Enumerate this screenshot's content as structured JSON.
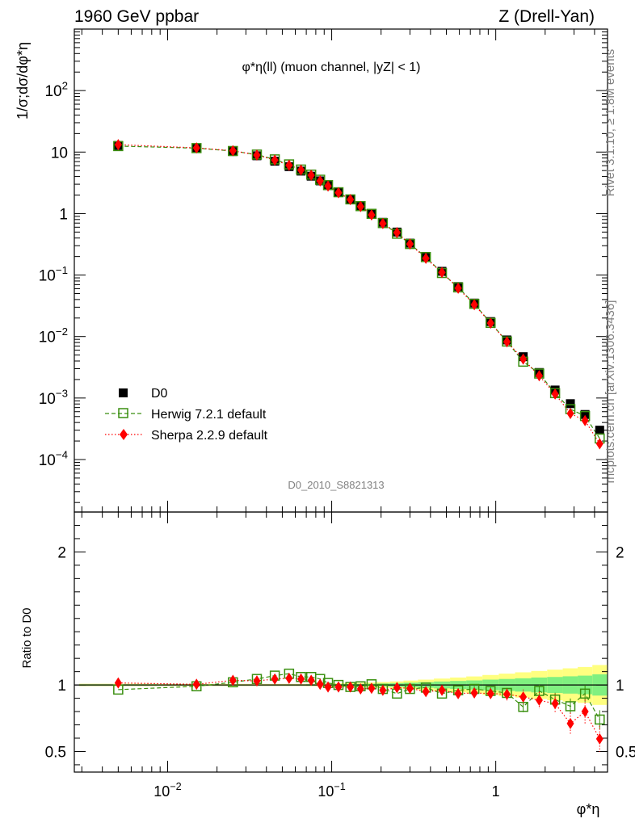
{
  "header": {
    "left": "1960 GeV ppbar",
    "right": "Z (Drell-Yan)"
  },
  "plot_title": "φ*η(ll) (muon channel, |yZ| < 1)",
  "side_labels": {
    "rivet": "Rivet 3.1.10, ≥ 1.8M events",
    "source": "mcplots.cern.ch [arXiv:1306.3436]"
  },
  "analysis_tag": "D0_2010_S8821313",
  "axes": {
    "main_ylabel": "1/σ;dσ/dφ*η",
    "ratio_ylabel": "Ratio to D0",
    "xlabel": "φ*η"
  },
  "legend": {
    "position": "lower-left",
    "entries": [
      "D0",
      "Herwig 7.2.1 default",
      "Sherpa 2.2.9 default"
    ]
  },
  "colors": {
    "data": "#000000",
    "herwig": "#3a8f10",
    "sherpa": "#ff0000",
    "band_inner": "#80f080",
    "band_outer": "#ffff80"
  },
  "chart_data": {
    "type": "scatter",
    "xscale": "log",
    "yscale": "log",
    "xlim": [
      0.0027,
      4.8
    ],
    "ylim": [
      1.4e-05,
      1000
    ],
    "ratio_ylim": [
      0.345,
      2.3
    ],
    "x_ticks": [
      "10^-2",
      "10^-1",
      "1"
    ],
    "main_y_ticks": [
      "10^-4",
      "10^-3",
      "10^-2",
      "10^-1",
      "1",
      "10",
      "10^2"
    ],
    "ratio_y_ticks": [
      "0.5",
      "1",
      "2"
    ],
    "x": [
      0.005,
      0.015,
      0.025,
      0.035,
      0.045,
      0.055,
      0.065,
      0.075,
      0.085,
      0.095,
      0.11,
      0.13,
      0.15,
      0.175,
      0.205,
      0.25,
      0.3,
      0.375,
      0.47,
      0.59,
      0.74,
      0.93,
      1.17,
      1.47,
      1.84,
      2.3,
      2.85,
      3.5,
      4.3
    ],
    "series": [
      {
        "name": "D0",
        "values": [
          12.8,
          11.6,
          10.2,
          8.7,
          7.1,
          5.8,
          4.9,
          4.05,
          3.4,
          2.85,
          2.22,
          1.72,
          1.33,
          0.98,
          0.72,
          0.5,
          0.33,
          0.2,
          0.115,
          0.065,
          0.035,
          0.0175,
          0.0088,
          0.0047,
          0.0026,
          0.00135,
          0.00081,
          0.00054,
          0.0003
        ]
      },
      {
        "name": "Herwig 7.2.1 default",
        "values": [
          12.5,
          11.6,
          10.4,
          9.1,
          7.6,
          6.3,
          5.2,
          4.3,
          3.55,
          2.9,
          2.22,
          1.7,
          1.32,
          0.99,
          0.7,
          0.47,
          0.32,
          0.196,
          0.108,
          0.063,
          0.034,
          0.0167,
          0.0083,
          0.0039,
          0.0025,
          0.0012,
          0.00066,
          0.00051,
          0.00022
        ],
        "ratio": [
          0.965,
          0.99,
          1.02,
          1.045,
          1.07,
          1.085,
          1.06,
          1.06,
          1.045,
          1.015,
          1.0,
          0.985,
          0.99,
          1.005,
          0.97,
          0.935,
          0.97,
          0.98,
          0.935,
          0.96,
          0.97,
          0.955,
          0.94,
          0.835,
          0.955,
          0.89,
          0.84,
          0.935,
          0.74
        ]
      },
      {
        "name": "Sherpa 2.2.9 default",
        "values": [
          13.2,
          11.7,
          10.5,
          8.95,
          7.4,
          6.1,
          5.1,
          4.2,
          3.4,
          2.8,
          2.18,
          1.69,
          1.3,
          0.95,
          0.69,
          0.49,
          0.32,
          0.187,
          0.11,
          0.061,
          0.033,
          0.0165,
          0.0082,
          0.0043,
          0.0023,
          0.00116,
          0.00056,
          0.00043,
          0.00018
        ],
        "ratio": [
          1.015,
          1.005,
          1.035,
          1.03,
          1.045,
          1.05,
          1.045,
          1.035,
          1.005,
          0.985,
          0.985,
          0.985,
          0.97,
          0.975,
          0.96,
          0.98,
          0.975,
          0.95,
          0.96,
          0.935,
          0.94,
          0.935,
          0.93,
          0.91,
          0.885,
          0.86,
          0.71,
          0.8,
          0.595
        ]
      }
    ],
    "ratio_band": {
      "inner_half_width": [
        0.005,
        0.004,
        0.004,
        0.004,
        0.004,
        0.004,
        0.004,
        0.005,
        0.005,
        0.005,
        0.006,
        0.007,
        0.008,
        0.009,
        0.011,
        0.014,
        0.017,
        0.021,
        0.026,
        0.03,
        0.034,
        0.04,
        0.045,
        0.05,
        0.056,
        0.06,
        0.065,
        0.07,
        0.08
      ],
      "outer_half_width": [
        0.009,
        0.008,
        0.008,
        0.008,
        0.008,
        0.008,
        0.008,
        0.009,
        0.01,
        0.011,
        0.012,
        0.014,
        0.016,
        0.018,
        0.022,
        0.027,
        0.033,
        0.04,
        0.048,
        0.056,
        0.064,
        0.075,
        0.085,
        0.095,
        0.105,
        0.115,
        0.125,
        0.135,
        0.15
      ]
    }
  }
}
